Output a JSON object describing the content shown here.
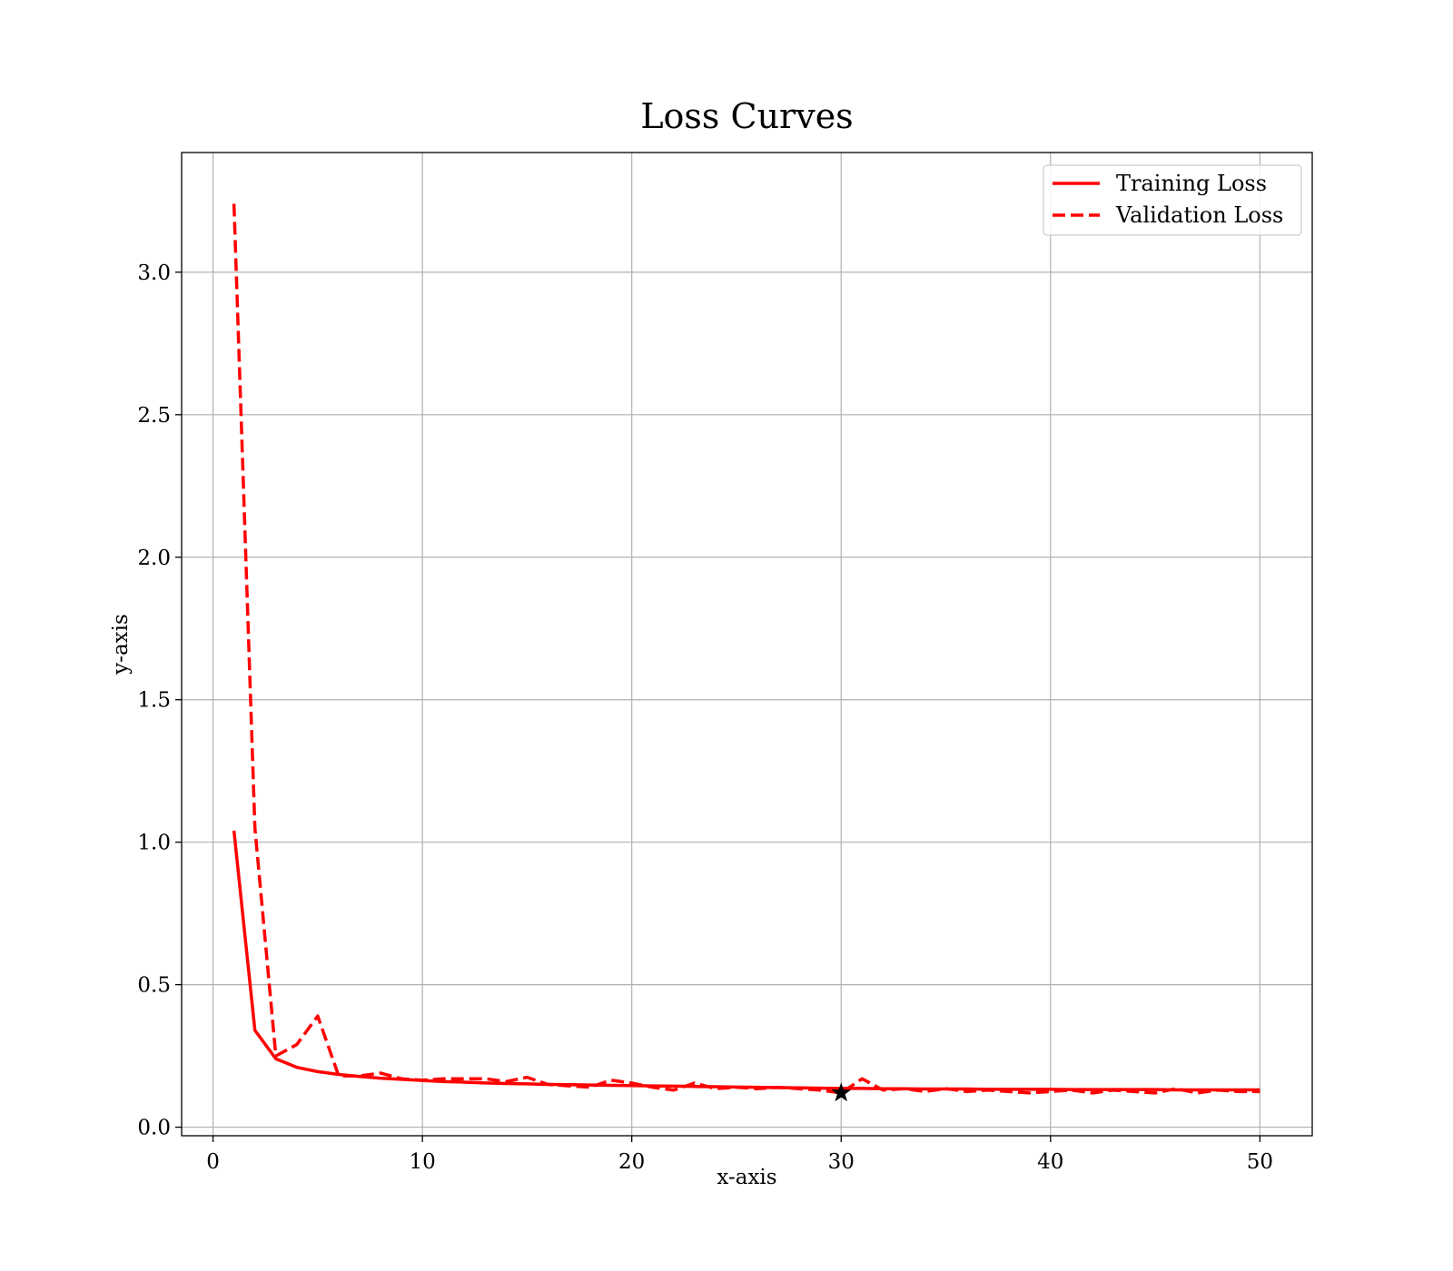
{
  "chart_data": {
    "type": "line",
    "title": "Loss Curves",
    "xlabel": "x-axis",
    "ylabel": "y-axis",
    "xlim": [
      -1.5,
      52.5
    ],
    "ylim": [
      -0.03,
      3.42
    ],
    "xticks": [
      0,
      10,
      20,
      30,
      40,
      50
    ],
    "xtick_labels": [
      "0",
      "10",
      "20",
      "30",
      "40",
      "50"
    ],
    "yticks": [
      0.0,
      0.5,
      1.0,
      1.5,
      2.0,
      2.5,
      3.0
    ],
    "ytick_labels": [
      "0.0",
      "0.5",
      "1.0",
      "1.5",
      "2.0",
      "2.5",
      "3.0"
    ],
    "grid": true,
    "legend_position": "top-right",
    "x": [
      1,
      2,
      3,
      4,
      5,
      6,
      7,
      8,
      9,
      10,
      11,
      12,
      13,
      14,
      15,
      16,
      17,
      18,
      19,
      20,
      21,
      22,
      23,
      24,
      25,
      26,
      27,
      28,
      29,
      30,
      31,
      32,
      33,
      34,
      35,
      36,
      37,
      38,
      39,
      40,
      41,
      42,
      43,
      44,
      45,
      46,
      47,
      48,
      49,
      50
    ],
    "series": [
      {
        "name": "Training Loss",
        "color": "#ff0000",
        "line_style": "solid",
        "values": [
          1.04,
          0.34,
          0.24,
          0.21,
          0.195,
          0.185,
          0.178,
          0.172,
          0.168,
          0.164,
          0.16,
          0.158,
          0.155,
          0.153,
          0.152,
          0.15,
          0.149,
          0.148,
          0.147,
          0.146,
          0.145,
          0.144,
          0.143,
          0.142,
          0.141,
          0.14,
          0.139,
          0.138,
          0.137,
          0.136,
          0.136,
          0.135,
          0.135,
          0.134,
          0.134,
          0.134,
          0.133,
          0.133,
          0.133,
          0.133,
          0.132,
          0.132,
          0.132,
          0.132,
          0.132,
          0.131,
          0.131,
          0.131,
          0.131,
          0.131
        ]
      },
      {
        "name": "Validation Loss",
        "color": "#ff0000",
        "line_style": "dashed",
        "values": [
          3.24,
          1.05,
          0.25,
          0.29,
          0.39,
          0.18,
          0.18,
          0.19,
          0.17,
          0.165,
          0.17,
          0.17,
          0.17,
          0.16,
          0.175,
          0.15,
          0.145,
          0.14,
          0.165,
          0.155,
          0.14,
          0.13,
          0.155,
          0.135,
          0.14,
          0.135,
          0.14,
          0.135,
          0.13,
          0.12,
          0.17,
          0.13,
          0.135,
          0.125,
          0.135,
          0.125,
          0.13,
          0.125,
          0.12,
          0.125,
          0.13,
          0.12,
          0.13,
          0.125,
          0.12,
          0.135,
          0.12,
          0.13,
          0.125,
          0.125
        ]
      }
    ],
    "marker": {
      "type": "star",
      "x": 30,
      "y": 0.12,
      "color": "#000000"
    }
  }
}
